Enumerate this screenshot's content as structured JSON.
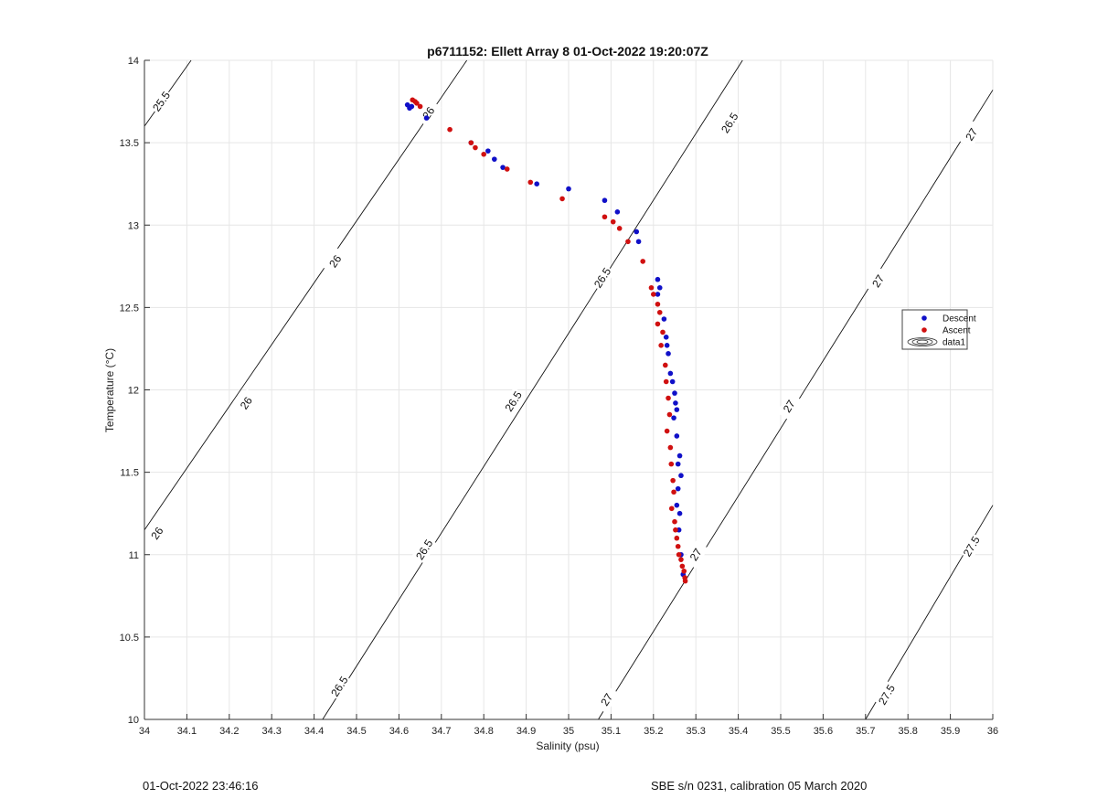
{
  "chart_data": {
    "type": "scatter",
    "title": "p6711152: Ellett Array 8 01-Oct-2022 19:20:07Z",
    "xlabel": "Salinity (psu)",
    "ylabel": "Temperature (°C)",
    "xlim": [
      34,
      36
    ],
    "ylim": [
      10,
      14
    ],
    "xticks": [
      "34",
      "34.1",
      "34.2",
      "34.3",
      "34.4",
      "34.5",
      "34.6",
      "34.7",
      "34.8",
      "34.9",
      "35",
      "35.1",
      "35.2",
      "35.3",
      "35.4",
      "35.5",
      "35.6",
      "35.7",
      "35.8",
      "35.9",
      "36"
    ],
    "yticks": [
      "10",
      "10.5",
      "11",
      "11.5",
      "12",
      "12.5",
      "13",
      "13.5",
      "14"
    ],
    "grid": true,
    "legend_position": "right",
    "legend": [
      {
        "label": "Descent",
        "marker": "dot",
        "color": "#1010c8"
      },
      {
        "label": "Ascent",
        "marker": "dot",
        "color": "#d01010"
      },
      {
        "label": "data1",
        "marker": "contour"
      }
    ],
    "series": [
      {
        "name": "Descent",
        "color": "#1010c8",
        "x": [
          34.62,
          34.625,
          34.63,
          34.665,
          34.77,
          34.81,
          34.825,
          34.845,
          34.925,
          35.0,
          35.085,
          35.115,
          35.16,
          35.165,
          35.21,
          35.215,
          35.21,
          35.225,
          35.23,
          35.232,
          35.235,
          35.24,
          35.245,
          35.25,
          35.252,
          35.255,
          35.248,
          35.255,
          35.262,
          35.258,
          35.265,
          35.258,
          35.255,
          35.262,
          35.26,
          35.265,
          35.27
        ],
        "y": [
          13.73,
          13.71,
          13.72,
          13.65,
          13.5,
          13.45,
          13.4,
          13.35,
          13.25,
          13.22,
          13.15,
          13.08,
          12.96,
          12.9,
          12.67,
          12.62,
          12.58,
          12.43,
          12.32,
          12.27,
          12.22,
          12.1,
          12.05,
          11.98,
          11.92,
          11.88,
          11.83,
          11.72,
          11.6,
          11.55,
          11.48,
          11.4,
          11.3,
          11.25,
          11.15,
          11.0,
          10.88
        ]
      },
      {
        "name": "Ascent",
        "color": "#d01010",
        "x": [
          34.632,
          34.638,
          34.642,
          34.65,
          34.72,
          34.77,
          34.78,
          34.8,
          34.855,
          34.91,
          34.985,
          35.085,
          35.105,
          35.12,
          35.14,
          35.175,
          35.195,
          35.2,
          35.21,
          35.215,
          35.21,
          35.222,
          35.218,
          35.228,
          35.23,
          35.235,
          35.238,
          35.232,
          35.24,
          35.242,
          35.246,
          35.248,
          35.243,
          35.25,
          35.252,
          35.255,
          35.258,
          35.26,
          35.265,
          35.268,
          35.272,
          35.274,
          35.275
        ],
        "y": [
          13.76,
          13.75,
          13.74,
          13.72,
          13.58,
          13.5,
          13.47,
          13.43,
          13.34,
          13.26,
          13.16,
          13.05,
          13.02,
          12.98,
          12.9,
          12.78,
          12.62,
          12.58,
          12.52,
          12.47,
          12.4,
          12.35,
          12.27,
          12.15,
          12.05,
          11.95,
          11.85,
          11.75,
          11.65,
          11.55,
          11.45,
          11.38,
          11.28,
          11.2,
          11.15,
          11.1,
          11.05,
          11.0,
          10.97,
          10.93,
          10.9,
          10.86,
          10.84
        ]
      }
    ],
    "contours": [
      {
        "value": 25.5,
        "label": "25.5",
        "x": [
          34.0,
          34.11
        ],
        "y": [
          13.6,
          14.0
        ]
      },
      {
        "value": 26,
        "label": "26",
        "x": [
          34.0,
          34.76
        ],
        "y": [
          11.15,
          14.0
        ]
      },
      {
        "value": 26.5,
        "label": "26.5",
        "x": [
          34.42,
          35.41
        ],
        "y": [
          10.0,
          14.0
        ]
      },
      {
        "value": 27,
        "label": "27",
        "x": [
          35.07,
          36.0
        ],
        "y": [
          10.0,
          13.82
        ]
      },
      {
        "value": 27.5,
        "label": "27.5",
        "x": [
          35.7,
          36.0
        ],
        "y": [
          10.0,
          11.3
        ]
      }
    ],
    "contour_labels": [
      {
        "text": "25.5",
        "x": 34.04,
        "y": 13.75
      },
      {
        "text": "26",
        "x": 34.67,
        "y": 13.68
      },
      {
        "text": "26",
        "x": 34.45,
        "y": 12.78
      },
      {
        "text": "26",
        "x": 34.24,
        "y": 11.92
      },
      {
        "text": "26",
        "x": 34.03,
        "y": 11.13
      },
      {
        "text": "26.5",
        "x": 35.38,
        "y": 13.62
      },
      {
        "text": "26.5",
        "x": 35.08,
        "y": 12.68
      },
      {
        "text": "26.5",
        "x": 34.87,
        "y": 11.93
      },
      {
        "text": "26.5",
        "x": 34.66,
        "y": 11.03
      },
      {
        "text": "26.5",
        "x": 34.46,
        "y": 10.2
      },
      {
        "text": "27",
        "x": 35.95,
        "y": 13.55
      },
      {
        "text": "27",
        "x": 35.73,
        "y": 12.66
      },
      {
        "text": "27",
        "x": 35.52,
        "y": 11.9
      },
      {
        "text": "27",
        "x": 35.3,
        "y": 11.0
      },
      {
        "text": "27",
        "x": 35.09,
        "y": 10.12
      },
      {
        "text": "27.5",
        "x": 35.95,
        "y": 11.05
      },
      {
        "text": "27.5",
        "x": 35.75,
        "y": 10.15
      }
    ]
  },
  "footer": {
    "left": "01-Oct-2022 23:46:16",
    "right": "SBE s/n 0231, calibration 05 March 2020"
  }
}
